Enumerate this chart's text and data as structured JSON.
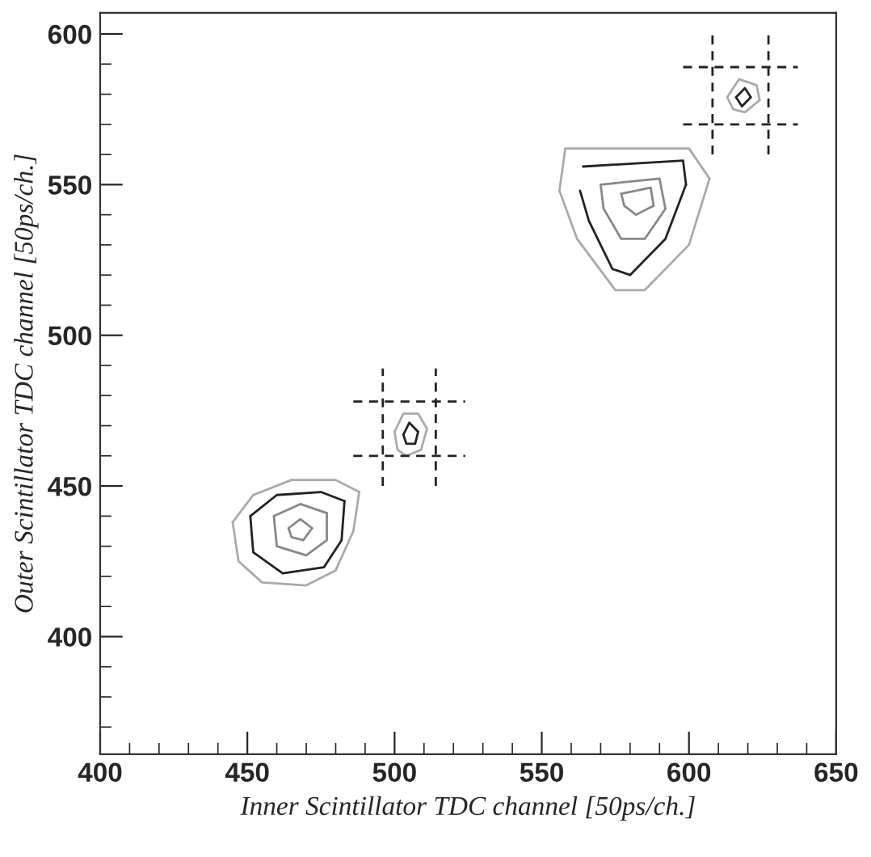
{
  "chart_data": {
    "type": "line",
    "xlabel": "Inner Scintillator TDC channel [50ps/ch.]",
    "ylabel": "Outer Scintillator TDC channel [50ps/ch.]",
    "xlim": [
      400,
      650
    ],
    "ylim": [
      361,
      607
    ],
    "xticks": [
      400,
      450,
      500,
      550,
      600,
      650
    ],
    "yticks": [
      400,
      450,
      500,
      550,
      600
    ],
    "grid": false,
    "legend": false,
    "marker": "none",
    "line_style": "solid",
    "series": [
      {
        "color": "#aaaaaa",
        "x": [
          445,
          452,
          465,
          480,
          488
        ],
        "values": [
          438,
          447,
          452,
          452,
          448
        ]
      },
      {
        "color": "#aaaaaa",
        "x": [
          445,
          447,
          455,
          470,
          480,
          486,
          488
        ],
        "values": [
          438,
          425,
          418,
          417,
          422,
          435,
          448
        ]
      },
      {
        "color": "#222222",
        "x": [
          451,
          460,
          475,
          483
        ],
        "values": [
          440,
          447,
          448,
          445
        ]
      },
      {
        "color": "#222222",
        "x": [
          451,
          452,
          462,
          476,
          482,
          483
        ],
        "values": [
          440,
          428,
          421,
          423,
          432,
          445
        ]
      },
      {
        "color": "#888888",
        "x": [
          459,
          468,
          477
        ],
        "values": [
          440,
          444,
          441
        ]
      },
      {
        "color": "#888888",
        "x": [
          459,
          460,
          470,
          477,
          477
        ],
        "values": [
          440,
          430,
          427,
          432,
          441
        ]
      },
      {
        "color": "#888888",
        "x": [
          464,
          468,
          472
        ],
        "values": [
          436,
          439,
          436
        ]
      },
      {
        "color": "#888888",
        "x": [
          464,
          465,
          469,
          472
        ],
        "values": [
          436,
          433,
          432,
          436
        ]
      },
      {
        "color": "#aaaaaa",
        "x": [
          500,
          503,
          508,
          511
        ],
        "values": [
          468,
          474,
          474,
          469
        ]
      },
      {
        "color": "#aaaaaa",
        "x": [
          500,
          501,
          504,
          509,
          511
        ],
        "values": [
          468,
          462,
          460,
          462,
          469
        ]
      },
      {
        "color": "#222222",
        "x": [
          503,
          505,
          508
        ],
        "values": [
          467,
          471,
          468
        ]
      },
      {
        "color": "#222222",
        "x": [
          503,
          504,
          507,
          508
        ],
        "values": [
          467,
          464,
          464,
          468
        ]
      },
      {
        "color": "#aaaaaa",
        "x": [
          556,
          558,
          600,
          607
        ],
        "values": [
          548,
          562,
          562,
          552
        ]
      },
      {
        "color": "#aaaaaa",
        "x": [
          556,
          562,
          575,
          585,
          600,
          607
        ],
        "values": [
          548,
          532,
          515,
          515,
          530,
          552
        ]
      },
      {
        "color": "#222222",
        "x": [
          564,
          598,
          599
        ],
        "values": [
          556,
          558,
          550
        ]
      },
      {
        "color": "#222222",
        "x": [
          563,
          566,
          574,
          580,
          592,
          599
        ],
        "values": [
          548,
          538,
          522,
          520,
          532,
          550
        ]
      },
      {
        "color": "#888888",
        "x": [
          570,
          590,
          592
        ],
        "values": [
          550,
          552,
          542
        ]
      },
      {
        "color": "#888888",
        "x": [
          570,
          571,
          577,
          585,
          592
        ],
        "values": [
          550,
          542,
          532,
          532,
          542
        ]
      },
      {
        "color": "#888888",
        "x": [
          577,
          587,
          588
        ],
        "values": [
          547,
          549,
          543
        ]
      },
      {
        "color": "#888888",
        "x": [
          577,
          578,
          582,
          588
        ],
        "values": [
          547,
          543,
          540,
          543
        ]
      },
      {
        "color": "#aaaaaa",
        "x": [
          613,
          617,
          623,
          624
        ],
        "values": [
          579,
          585,
          583,
          578
        ]
      },
      {
        "color": "#aaaaaa",
        "x": [
          613,
          615,
          619,
          624
        ],
        "values": [
          579,
          575,
          574,
          578
        ]
      },
      {
        "color": "#222222",
        "x": [
          616,
          619,
          621
        ],
        "values": [
          579,
          582,
          579
        ]
      },
      {
        "color": "#222222",
        "x": [
          616,
          618,
          621
        ],
        "values": [
          579,
          576,
          579
        ]
      },
      {
        "color": "#222222",
        "line_style": "dashed",
        "x": [
          486,
          524
        ],
        "values": [
          478,
          478
        ]
      },
      {
        "color": "#222222",
        "line_style": "dashed",
        "x": [
          486,
          524
        ],
        "values": [
          460,
          460
        ]
      },
      {
        "color": "#222222",
        "line_style": "dashed",
        "x": [
          496,
          496
        ],
        "values": [
          450,
          489
        ]
      },
      {
        "color": "#222222",
        "line_style": "dashed",
        "x": [
          514,
          514
        ],
        "values": [
          450,
          489
        ]
      },
      {
        "color": "#222222",
        "line_style": "dashed",
        "x": [
          598,
          637
        ],
        "values": [
          589,
          589
        ]
      },
      {
        "color": "#222222",
        "line_style": "dashed",
        "x": [
          598,
          637
        ],
        "values": [
          570,
          570
        ]
      },
      {
        "color": "#222222",
        "line_style": "dashed",
        "x": [
          608,
          608
        ],
        "values": [
          560,
          600
        ]
      },
      {
        "color": "#222222",
        "line_style": "dashed",
        "x": [
          627,
          627
        ],
        "values": [
          560,
          600
        ]
      }
    ]
  }
}
